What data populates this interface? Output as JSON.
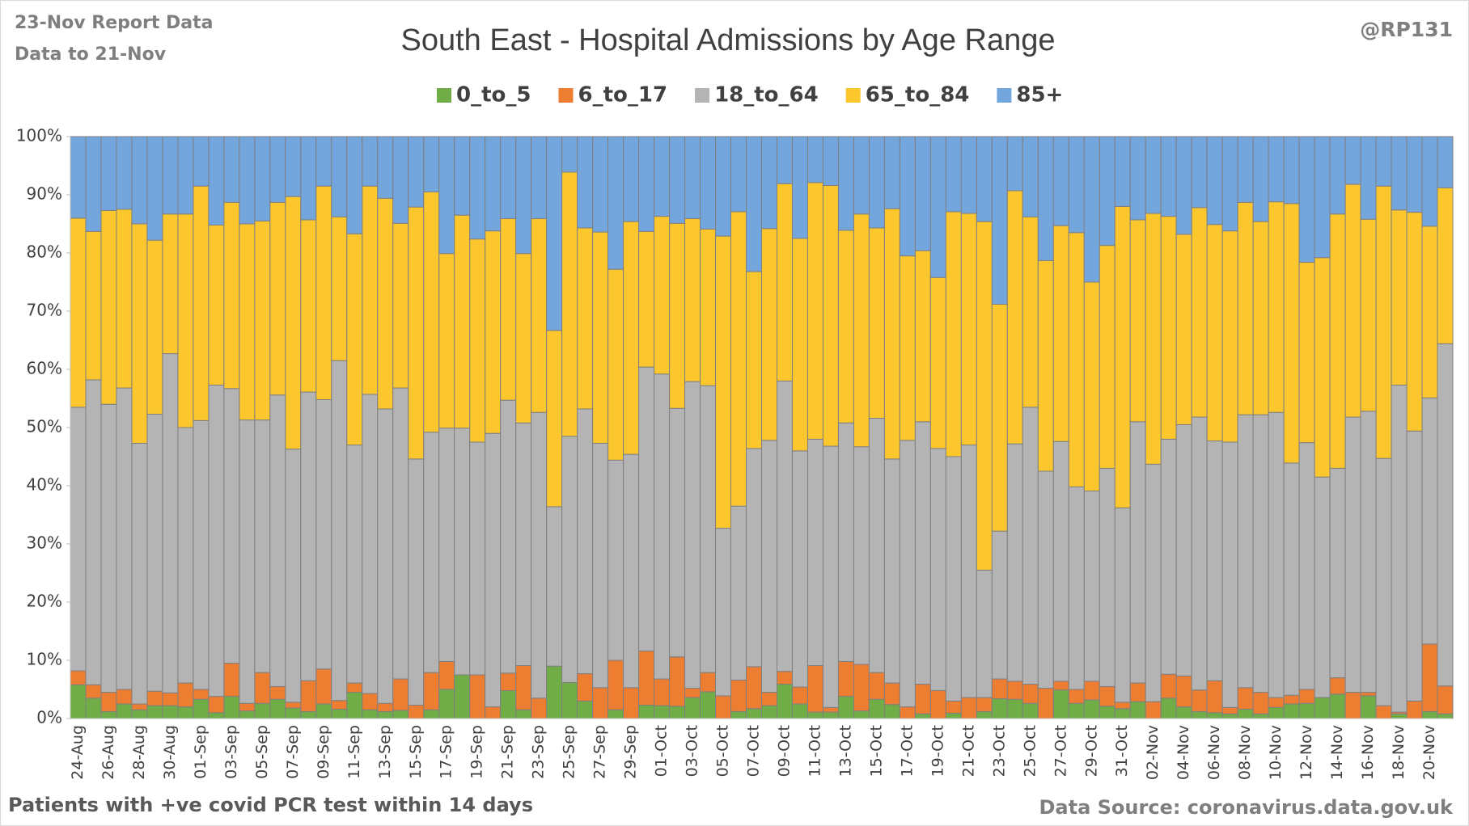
{
  "chart_data": {
    "type": "stacked_percent_bar",
    "title": "South East - Hospital Admissions by Age Range",
    "report_note": "23-Nov Report Data",
    "data_note": "Data to 21-Nov",
    "author": "@RP131",
    "footnote": "Patients with  +ve covid PCR test within 14 days",
    "source": "Data Source: coronavirus.data.gov.uk",
    "legend_position": "top",
    "grid": false,
    "ylim": [
      0,
      100
    ],
    "yticks": [
      {
        "value": 0,
        "label": "0%"
      },
      {
        "value": 10,
        "label": "10%"
      },
      {
        "value": 20,
        "label": "20%"
      },
      {
        "value": 30,
        "label": "30%"
      },
      {
        "value": 40,
        "label": "40%"
      },
      {
        "value": 50,
        "label": "50%"
      },
      {
        "value": 60,
        "label": "60%"
      },
      {
        "value": 70,
        "label": "70%"
      },
      {
        "value": 80,
        "label": "80%"
      },
      {
        "value": 90,
        "label": "90%"
      },
      {
        "value": 100,
        "label": "100%"
      }
    ],
    "categories": [
      "24-Aug",
      null,
      "26-Aug",
      null,
      "28-Aug",
      null,
      "30-Aug",
      null,
      "01-Sep",
      null,
      "03-Sep",
      null,
      "05-Sep",
      null,
      "07-Sep",
      null,
      "09-Sep",
      null,
      "11-Sep",
      null,
      "13-Sep",
      null,
      "15-Sep",
      null,
      "17-Sep",
      null,
      "19-Sep",
      null,
      "21-Sep",
      null,
      "23-Sep",
      null,
      "25-Sep",
      null,
      "27-Sep",
      null,
      "29-Sep",
      null,
      "01-Oct",
      null,
      "03-Oct",
      null,
      "05-Oct",
      null,
      "07-Oct",
      null,
      "09-Oct",
      null,
      "11-Oct",
      null,
      "13-Oct",
      null,
      "15-Oct",
      null,
      "17-Oct",
      null,
      "19-Oct",
      null,
      "21-Oct",
      null,
      "23-Oct",
      null,
      "25-Oct",
      null,
      "27-Oct",
      null,
      "29-Oct",
      null,
      "31-Oct",
      null,
      "02-Nov",
      null,
      "04-Nov",
      null,
      "06-Nov",
      null,
      "08-Nov",
      null,
      "10-Nov",
      null,
      "12-Nov",
      null,
      "14-Nov",
      null,
      "16-Nov",
      null,
      "18-Nov",
      null,
      "20-Nov",
      null
    ],
    "series": [
      {
        "name": "0_to_5",
        "color": "#70ad47",
        "values": [
          5.8,
          3.5,
          1.2,
          2.5,
          1.5,
          2.2,
          2.2,
          2,
          3.3,
          1,
          3.8,
          1.3,
          2.6,
          3.3,
          1.8,
          1.2,
          2.5,
          1.6,
          4.5,
          1.5,
          1.2,
          1.4,
          0,
          1.5,
          5,
          7.5,
          0,
          0,
          4.8,
          1.5,
          0,
          9,
          6.2,
          3,
          0,
          1.5,
          0,
          2.3,
          2.2,
          2.1,
          3.6,
          4.6,
          0,
          1.2,
          1.7,
          2.2,
          5.9,
          2.5,
          1.1,
          1.1,
          3.8,
          1.3,
          3.3,
          2.4,
          0,
          0.8,
          0,
          0.9,
          0,
          1.2,
          3.4,
          3.3,
          2.6,
          0,
          4.9,
          2.6,
          3.2,
          2.1,
          1.7,
          2.9,
          0,
          3.5,
          2,
          1.2,
          1,
          0.8,
          1.6,
          0.8,
          1.9,
          2.5,
          2.6,
          3.6,
          4.2,
          0,
          3.9,
          0,
          0.8,
          0,
          1.2,
          0.8
        ]
      },
      {
        "name": "6_to_17",
        "color": "#ed7d31",
        "values": [
          2.4,
          2.3,
          3.3,
          2.5,
          1,
          2.5,
          2.2,
          4.1,
          1.7,
          2.8,
          5.7,
          1.3,
          5.3,
          2.2,
          1,
          5.3,
          6,
          1.5,
          1.6,
          2.8,
          1.4,
          5.4,
          2.3,
          6.4,
          4.8,
          0,
          7.5,
          2,
          3,
          7.6,
          3.5,
          0,
          0,
          4.7,
          5.3,
          8.5,
          5.3,
          9.3,
          4.6,
          8.5,
          1.6,
          3.3,
          3.9,
          5.4,
          7.2,
          2.3,
          2.2,
          2.9,
          8,
          0.8,
          6,
          8,
          4.6,
          3.7,
          2,
          5.1,
          4.8,
          2.1,
          3.6,
          2.4,
          3.4,
          3.1,
          3.3,
          5.2,
          1.5,
          2.4,
          3.2,
          3.4,
          1.1,
          3.2,
          2.9,
          4.1,
          5.3,
          3.7,
          5.5,
          1.1,
          3.7,
          3.7,
          1.7,
          1.5,
          2.4,
          0,
          2.8,
          4.5,
          0.6,
          2.2,
          0.3,
          3,
          11.6,
          4.8
        ]
      },
      {
        "name": "18_to_64",
        "color": "#b4b4b4",
        "values": [
          45.3,
          52.4,
          49.5,
          51.8,
          44.8,
          47.6,
          58.3,
          43.9,
          46.2,
          53.5,
          47.2,
          48.7,
          43.4,
          50.1,
          43.5,
          49.6,
          46.3,
          58.4,
          40.9,
          51.4,
          50.6,
          50,
          42.3,
          41.3,
          40.1,
          42.4,
          40,
          47,
          46.9,
          41.7,
          49.1,
          27.4,
          42.3,
          45.5,
          42,
          34.4,
          40.1,
          48.8,
          52.4,
          42.7,
          52.7,
          49.3,
          28.8,
          29.9,
          37.5,
          43.3,
          49.9,
          40.6,
          38.9,
          44.9,
          41,
          37.4,
          43.7,
          38.5,
          45.8,
          45.1,
          41.6,
          42,
          43.4,
          21.9,
          25.4,
          40.8,
          47.6,
          37.3,
          41.2,
          34.8,
          32.7,
          37.5,
          33.4,
          44.9,
          40.8,
          40.4,
          43.2,
          46.9,
          41.2,
          45.6,
          46.9,
          47.7,
          49,
          39.9,
          42.4,
          37.9,
          36,
          47.3,
          48.3,
          42.5,
          56.2,
          46.4,
          42.3,
          58.8
        ]
      },
      {
        "name": "65_to_84",
        "color": "#fcc62d",
        "values": [
          32.5,
          25.5,
          33.3,
          30.7,
          37.7,
          29.9,
          24,
          36.7,
          40.3,
          27.5,
          32,
          33.7,
          34.2,
          33.1,
          43.4,
          29.6,
          36.7,
          24.7,
          36.3,
          35.8,
          36.2,
          28.3,
          43.3,
          41.3,
          30,
          36.6,
          34.9,
          34.8,
          31.2,
          29.1,
          33.3,
          30.3,
          45.4,
          31.1,
          36.3,
          32.8,
          40,
          23.3,
          27.1,
          31.8,
          28,
          26.9,
          50.2,
          50.6,
          30.4,
          36.4,
          33.9,
          36.5,
          44.1,
          44.8,
          33.1,
          40,
          32.7,
          43,
          31.7,
          29.4,
          29.4,
          42.1,
          39.8,
          59.9,
          39,
          43.5,
          32.7,
          36.2,
          37.1,
          43.7,
          35.9,
          38.3,
          51.8,
          34.7,
          43.1,
          38.3,
          32.7,
          36,
          37.2,
          36.3,
          36.5,
          33.2,
          36.2,
          44.6,
          31,
          37.7,
          43.7,
          40,
          33,
          46.8,
          30.1,
          37.6,
          29.5,
          26.8
        ]
      },
      {
        "name": "85+",
        "color": "#74a6de",
        "values": [
          14,
          16.3,
          12.7,
          12.5,
          15,
          17.8,
          13.3,
          13.3,
          8.5,
          15.2,
          11.3,
          15,
          14.5,
          11.3,
          10.3,
          14.3,
          8.5,
          13.8,
          16.7,
          8.5,
          10.6,
          14.9,
          12.1,
          9.5,
          20.1,
          13.5,
          17.6,
          16.2,
          14.1,
          20.1,
          14.1,
          33.3,
          6.1,
          15.7,
          16.4,
          22.8,
          14.6,
          16.3,
          13.7,
          14.9,
          14.1,
          15.9,
          17.1,
          12.9,
          23.2,
          15.8,
          8.1,
          17.5,
          7.9,
          8.4,
          16.1,
          13.3,
          15.7,
          12.4,
          20.5,
          19.6,
          24.2,
          12.9,
          13.2,
          14.6,
          28.8,
          9.3,
          13.8,
          21.3,
          15.3,
          16.5,
          25,
          18.7,
          12,
          14.3,
          13.2,
          13.7,
          16.8,
          12.2,
          15.1,
          16.2,
          11.3,
          14.6,
          11.2,
          11.5,
          21.6,
          20.8,
          13.3,
          8.2,
          14.2,
          8.5,
          12.6,
          13,
          15.4,
          8.8
        ]
      }
    ]
  }
}
